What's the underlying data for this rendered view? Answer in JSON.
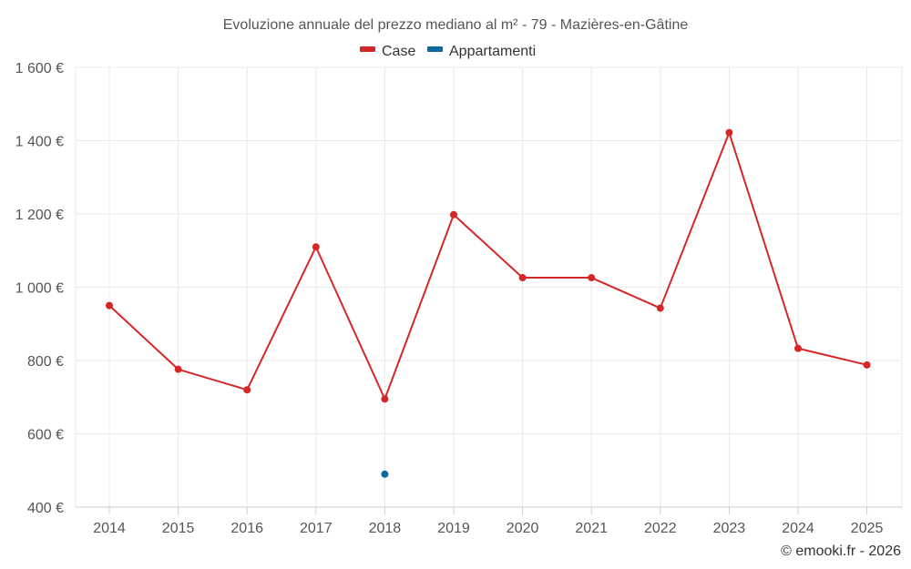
{
  "chart_data": {
    "type": "line",
    "title": "Evoluzione annuale del prezzo mediano al m² - 79 - Mazières-en-Gâtine",
    "categories": [
      "2014",
      "2015",
      "2016",
      "2017",
      "2018",
      "2019",
      "2020",
      "2021",
      "2022",
      "2023",
      "2024",
      "2025"
    ],
    "ylim": [
      400,
      1600
    ],
    "yticks": [
      400,
      600,
      800,
      1000,
      1200,
      1400,
      1600
    ],
    "ytick_labels": [
      "400 €",
      "600 €",
      "800 €",
      "1 000 €",
      "1 200 €",
      "1 400 €",
      "1 600 €"
    ],
    "series": [
      {
        "name": "Case",
        "color": "#d62728",
        "values": [
          950,
          776,
          720,
          1110,
          695,
          1198,
          1026,
          1026,
          943,
          1422,
          833,
          788
        ]
      },
      {
        "name": "Appartamenti",
        "color": "#0d6a9c",
        "values": [
          null,
          null,
          null,
          null,
          490,
          null,
          null,
          null,
          null,
          null,
          null,
          null
        ]
      }
    ],
    "xlabel": "",
    "ylabel": "",
    "grid": true,
    "legend_position": "top-center"
  },
  "credit": "© emooki.fr - 2026"
}
